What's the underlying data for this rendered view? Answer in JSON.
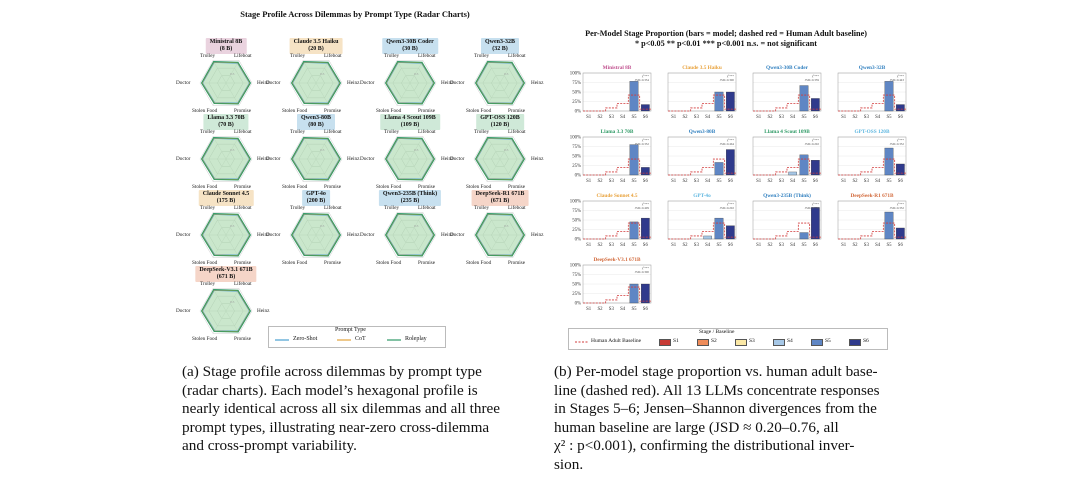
{
  "left": {
    "title": "Stage Profile Across Dilemmas by Prompt Type  (Radar Charts)",
    "vertices": [
      "Trolley",
      "Lifeboat",
      "Heinz",
      "Promise",
      "Stolen Food",
      "Doctor"
    ],
    "ring_labels": [
      "0.5",
      "0.3"
    ],
    "panels": [
      {
        "name": "Ministral 8B",
        "size": "(8 B)",
        "color": "#ead3df"
      },
      {
        "name": "Claude 3.5 Haiku",
        "size": "(20 B)",
        "color": "#f6e3c5"
      },
      {
        "name": "Qwen3-30B Coder",
        "size": "(30 B)",
        "color": "#c7e0ef"
      },
      {
        "name": "Qwen3-32B",
        "size": "(32 B)",
        "color": "#c7e0ef"
      },
      {
        "name": "Llama 3.3 70B",
        "size": "(70 B)",
        "color": "#cfe9d8"
      },
      {
        "name": "Qwen3-80B",
        "size": "(80 B)",
        "color": "#c7e0ef"
      },
      {
        "name": "Llama 4 Scout 109B",
        "size": "(109 B)",
        "color": "#cfe9d8"
      },
      {
        "name": "GPT-OSS 120B",
        "size": "(120 B)",
        "color": "#cfe9d8"
      },
      {
        "name": "Claude Sonnet 4.5",
        "size": "(175 B)",
        "color": "#f6e3c5"
      },
      {
        "name": "GPT-4o",
        "size": "(200 B)",
        "color": "#c7e0ef"
      },
      {
        "name": "Qwen3-235B (Think)",
        "size": "(235 B)",
        "color": "#c7e0ef"
      },
      {
        "name": "DeepSeek-R1 671B",
        "size": "(671 B)",
        "color": "#f5d5c8"
      },
      {
        "name": "DeepSeek-V3.1 671B",
        "size": "(671 B)",
        "color": "#f5d5c8"
      }
    ],
    "legend": {
      "title": "Prompt Type",
      "items": [
        {
          "label": "Zero-Shot",
          "color": "#4a9fd0"
        },
        {
          "label": "CoT",
          "color": "#e3a23b"
        },
        {
          "label": "Roleplay",
          "color": "#2f9a66"
        }
      ]
    },
    "caption_lines": [
      "(a) Stage profile across dilemmas by prompt type",
      "(radar charts).  Each model’s hexagonal profile is",
      "nearly identical across all six dilemmas and all three",
      "prompt types, illustrating near-zero cross-dilemma",
      "and cross-prompt variability."
    ]
  },
  "chart_data": {
    "type": "bar",
    "title": "Per-Model Stage Proportion  (bars = model; dashed red = Human Adult baseline)",
    "subtitle": "* p<0.05  ** p<0.01  *** p<0.001  n.s. = not significant",
    "categories": [
      "S1",
      "S2",
      "S3",
      "S4",
      "S5",
      "S6"
    ],
    "yticks": [
      "0%",
      "25%",
      "50%",
      "75%",
      "100%"
    ],
    "ylim": [
      0,
      100
    ],
    "baseline": [
      0,
      0,
      8,
      20,
      42,
      5
    ],
    "legend_title": "Stage / Baseline",
    "baseline_label": "Human Adult Baseline",
    "stage_colors": [
      "#c73a35",
      "#ee8c5a",
      "#fbe8a6",
      "#a6c7e6",
      "#5f86c4",
      "#2f3a8c"
    ],
    "models": [
      {
        "name": "Ministral 8B",
        "color": "#c0508e",
        "values": [
          0,
          0,
          0,
          0,
          78,
          17
        ],
        "sig": "χ²***",
        "jsd": "JSD=0.354"
      },
      {
        "name": "Claude 3.5 Haiku",
        "color": "#e8a13a",
        "values": [
          0,
          0,
          0,
          0,
          50,
          50
        ],
        "sig": "χ²***",
        "jsd": "JSD=0.300"
      },
      {
        "name": "Qwen3-30B Coder",
        "color": "#2f7fbf",
        "values": [
          0,
          0,
          0,
          0,
          67,
          33
        ],
        "sig": "χ²***",
        "jsd": "JSD=0.359"
      },
      {
        "name": "Qwen3-32B",
        "color": "#2f7fbf",
        "values": [
          0,
          0,
          0,
          0,
          78,
          17
        ],
        "sig": "χ²***",
        "jsd": "JSD=0.443"
      },
      {
        "name": "Llama 3.3 70B",
        "color": "#2f9a66",
        "values": [
          0,
          0,
          0,
          0,
          80,
          20
        ],
        "sig": "χ²***",
        "jsd": "JSD=0.352"
      },
      {
        "name": "Qwen3-80B",
        "color": "#2f7fbf",
        "values": [
          0,
          0,
          0,
          0,
          33,
          67
        ],
        "sig": "χ²***",
        "jsd": "JSD=0.464"
      },
      {
        "name": "Llama 4 Scout 109B",
        "color": "#2f9a66",
        "values": [
          0,
          0,
          0,
          8,
          53,
          39
        ],
        "sig": "χ²***",
        "jsd": "JSD=0.202"
      },
      {
        "name": "GPT-OSS 120B",
        "color": "#5fb7e0",
        "values": [
          0,
          0,
          0,
          0,
          71,
          29
        ],
        "sig": "χ²***",
        "jsd": "JSD=0.352"
      },
      {
        "name": "Claude Sonnet 4.5",
        "color": "#e8a13a",
        "values": [
          0,
          0,
          0,
          0,
          45,
          55
        ],
        "sig": "χ²***",
        "jsd": "JSD=0.409"
      },
      {
        "name": "GPT-4o",
        "color": "#5fb7e0",
        "values": [
          0,
          0,
          0,
          8,
          55,
          35
        ],
        "sig": "χ²***",
        "jsd": "JSD=0.202"
      },
      {
        "name": "Qwen3-235B (Think)",
        "color": "#2f7fbf",
        "values": [
          0,
          0,
          0,
          0,
          17,
          83
        ],
        "sig": "χ²***",
        "jsd": "JSD=0.759"
      },
      {
        "name": "DeepSeek-R1 671B",
        "color": "#d2693a",
        "values": [
          0,
          0,
          0,
          0,
          71,
          29
        ],
        "sig": "χ²***",
        "jsd": "JSD=0.352"
      },
      {
        "name": "DeepSeek-V3.1 671B",
        "color": "#d2693a",
        "values": [
          0,
          0,
          0,
          0,
          50,
          50
        ],
        "sig": "χ²***",
        "jsd": "JSD=0.300"
      }
    ],
    "legend_items": [
      "S1",
      "S2",
      "S3",
      "S4",
      "S5",
      "S6"
    ]
  },
  "right": {
    "caption_lines": [
      "(b) Per-model stage proportion vs. human adult base-",
      "line (dashed red). All 13 LLMs concentrate responses",
      "in Stages 5–6; Jensen–Shannon divergences from the",
      "human baseline are large (JSD ≈ 0.20–0.76, all",
      "χ² : p<0.001), confirming the distributional inver-",
      "sion."
    ]
  }
}
